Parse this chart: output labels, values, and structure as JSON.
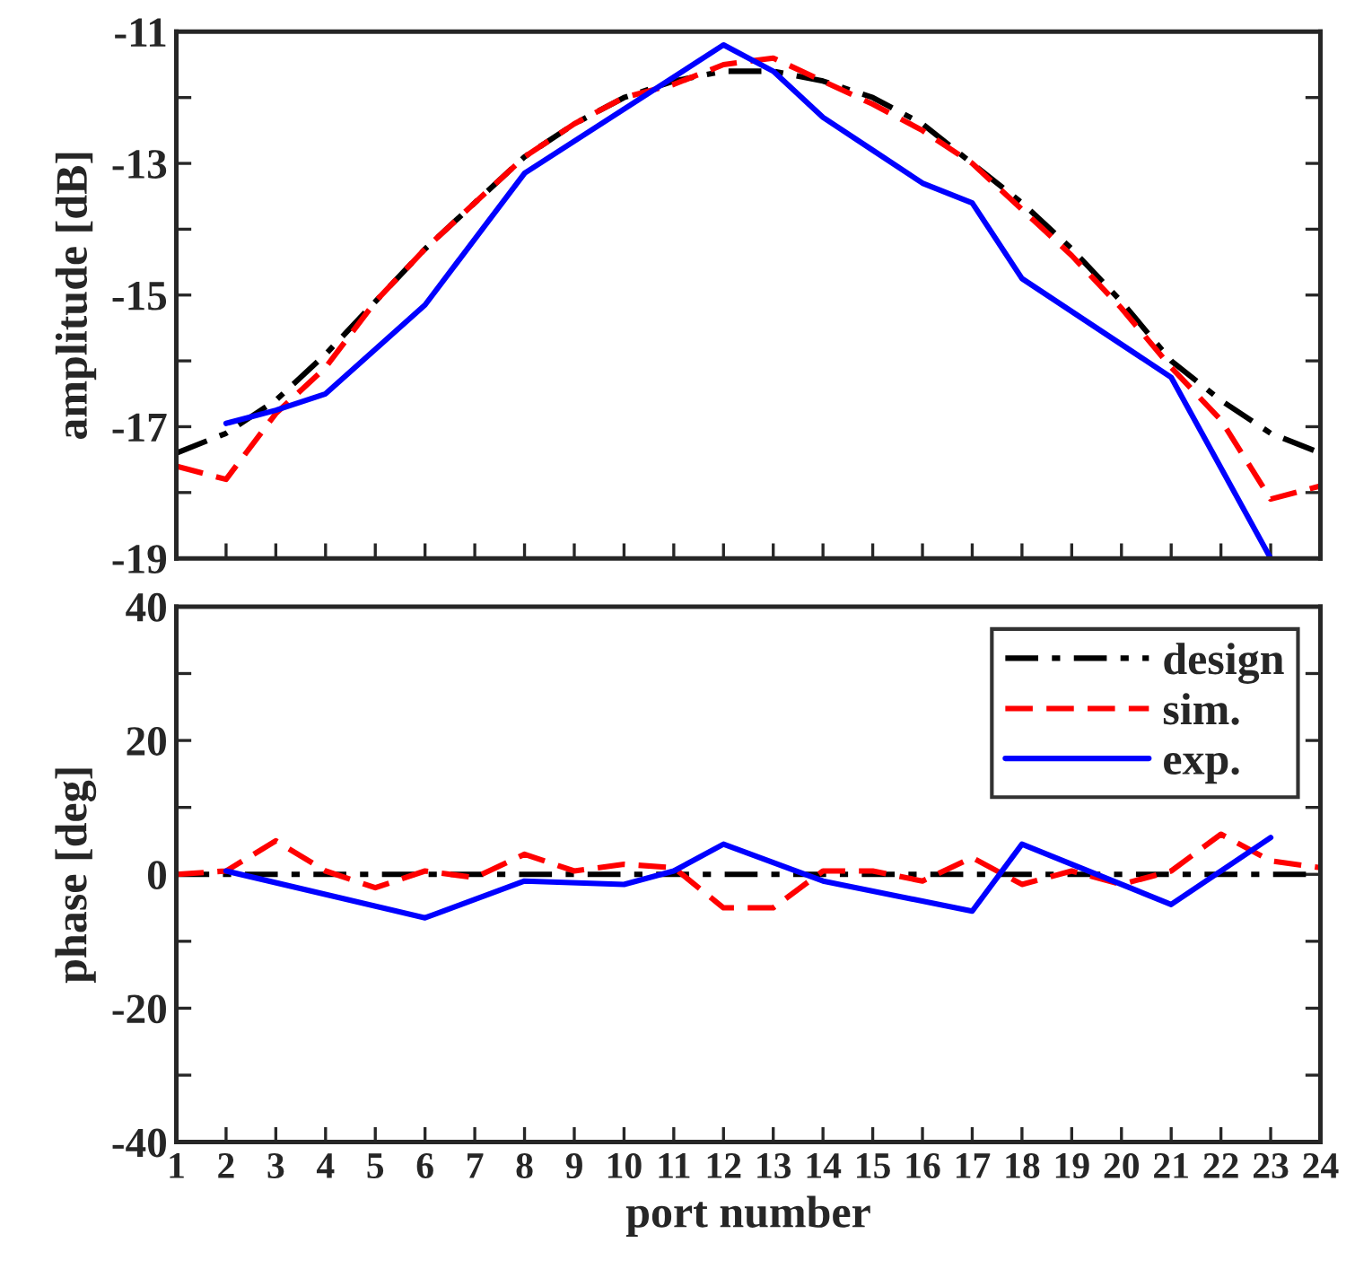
{
  "chart_data": [
    {
      "type": "line",
      "ylabel": "amplitude [dB]",
      "tick_labels": "y",
      "grid": false,
      "legend": false,
      "xlim": [
        1,
        24
      ],
      "xticks": [
        1,
        2,
        3,
        4,
        5,
        6,
        7,
        8,
        9,
        10,
        11,
        12,
        13,
        14,
        15,
        16,
        17,
        18,
        19,
        20,
        21,
        22,
        23,
        24
      ],
      "ylim": [
        -19,
        -11
      ],
      "yticks": [
        -19,
        {
          "value": -18,
          "label": null
        },
        -17,
        {
          "value": -16,
          "label": null
        },
        -15,
        {
          "value": -14,
          "label": null
        },
        -13,
        {
          "value": -12,
          "label": null
        },
        -11
      ],
      "series": [
        {
          "color": "#000000",
          "line_style": "dashdot",
          "x": [
            1,
            2,
            3,
            4,
            5,
            6,
            7,
            8,
            9,
            10,
            11,
            12,
            13,
            14,
            15,
            16,
            17,
            18,
            19,
            20,
            21,
            22,
            23,
            24
          ],
          "values": [
            -17.4,
            -17.1,
            -16.6,
            -15.9,
            -15.1,
            -14.3,
            -13.6,
            -12.9,
            -12.4,
            -12.0,
            -11.75,
            -11.6,
            -11.6,
            -11.75,
            -12.0,
            -12.4,
            -13.0,
            -13.6,
            -14.3,
            -15.1,
            -16.0,
            -16.6,
            -17.1,
            -17.4
          ]
        },
        {
          "color": "#ff0000",
          "line_style": "dashed",
          "x": [
            1,
            2,
            3,
            4,
            5,
            6,
            7,
            8,
            9,
            10,
            11,
            12,
            13,
            14,
            15,
            16,
            17,
            18,
            19,
            20,
            21,
            22,
            23,
            24
          ],
          "values": [
            -17.6,
            -17.8,
            -16.8,
            -16.1,
            -15.1,
            -14.3,
            -13.6,
            -12.9,
            -12.4,
            -12.0,
            -11.8,
            -11.5,
            -11.4,
            -11.75,
            -12.1,
            -12.5,
            -13.0,
            -13.7,
            -14.4,
            -15.2,
            -16.1,
            -16.9,
            -18.1,
            -17.9
          ]
        },
        {
          "color": "#0000ff",
          "line_style": "solid",
          "x": [
            2,
            3,
            4,
            6,
            8,
            12,
            13,
            14,
            15,
            16,
            17,
            18,
            21,
            23
          ],
          "values": [
            -16.95,
            -16.75,
            -16.5,
            -15.15,
            -13.15,
            -11.2,
            -11.6,
            -12.3,
            -12.8,
            -13.3,
            -13.6,
            -14.75,
            -16.25,
            -19.0
          ]
        }
      ]
    },
    {
      "type": "line",
      "ylabel": "phase [deg]",
      "xlabel": "port number",
      "grid": false,
      "legend": "top right",
      "xlim": [
        1,
        24
      ],
      "xticks": [
        1,
        2,
        3,
        4,
        5,
        6,
        7,
        8,
        9,
        10,
        11,
        12,
        13,
        14,
        15,
        16,
        17,
        18,
        19,
        20,
        21,
        22,
        23,
        24
      ],
      "ylim": [
        -40,
        40
      ],
      "yticks": [
        -40,
        {
          "value": -30,
          "label": null
        },
        -20,
        {
          "value": -10,
          "label": null
        },
        0,
        {
          "value": 10,
          "label": null
        },
        20,
        {
          "value": 30,
          "label": null
        },
        40
      ],
      "series": [
        {
          "name": "design",
          "color": "#000000",
          "line_style": "dashdot",
          "x": [
            1,
            2,
            3,
            4,
            5,
            6,
            7,
            8,
            9,
            10,
            11,
            12,
            13,
            14,
            15,
            16,
            17,
            18,
            19,
            20,
            21,
            22,
            23,
            24
          ],
          "values": [
            0,
            0,
            0,
            0,
            0,
            0,
            0,
            0,
            0,
            0,
            0,
            0,
            0,
            0,
            0,
            0,
            0,
            0,
            0,
            0,
            0,
            0,
            0,
            0
          ]
        },
        {
          "name": "sim.",
          "color": "#ff0000",
          "line_style": "dashed",
          "x": [
            1,
            2,
            3,
            4,
            5,
            6,
            7,
            8,
            9,
            10,
            11,
            12,
            13,
            14,
            15,
            16,
            17,
            18,
            19,
            20,
            21,
            22,
            23,
            24
          ],
          "values": [
            0,
            0.5,
            5,
            0.5,
            -2,
            0.5,
            -0.5,
            3,
            0.5,
            1.5,
            1,
            -5,
            -5,
            0.5,
            0.5,
            -1,
            2.5,
            -1.5,
            0.5,
            -1.5,
            0.5,
            6,
            2,
            1
          ]
        },
        {
          "name": "exp.",
          "color": "#0000ff",
          "line_style": "solid",
          "x": [
            2,
            6,
            8,
            10,
            11,
            12,
            14,
            17,
            18,
            21,
            23
          ],
          "values": [
            0.5,
            -6.5,
            -1,
            -1.5,
            0.5,
            4.5,
            -1,
            -5.5,
            4.5,
            -4.5,
            5.5
          ]
        }
      ]
    }
  ]
}
